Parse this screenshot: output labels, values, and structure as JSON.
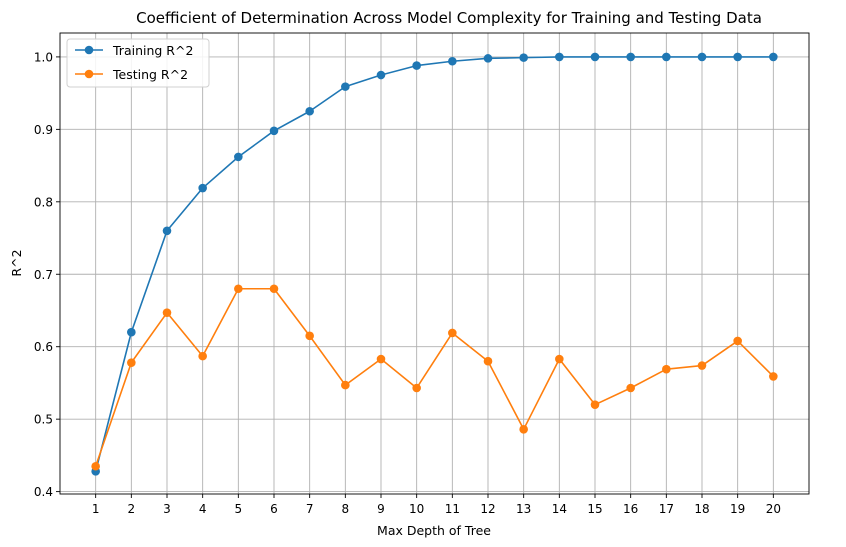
{
  "chart_data": {
    "type": "line",
    "title": "Coefficient of Determination Across Model Complexity for Training and Testing Data",
    "xlabel": "Max Depth of Tree",
    "ylabel": "R^2",
    "x": [
      1,
      2,
      3,
      4,
      5,
      6,
      7,
      8,
      9,
      10,
      11,
      12,
      13,
      14,
      15,
      16,
      17,
      18,
      19,
      20
    ],
    "ylim": [
      0.4,
      1.0
    ],
    "yticks": [
      0.4,
      0.5,
      0.6,
      0.7,
      0.8,
      0.9,
      1.0
    ],
    "ytick_labels": [
      "0.4",
      "0.5",
      "0.6",
      "0.7",
      "0.8",
      "0.9",
      "1.0"
    ],
    "grid": true,
    "legend_position": "top-left",
    "series": [
      {
        "name": "Training R^2",
        "color": "#1f77b4",
        "values": [
          0.428,
          0.62,
          0.76,
          0.819,
          0.862,
          0.898,
          0.925,
          0.959,
          0.975,
          0.988,
          0.994,
          0.998,
          0.999,
          1.0,
          1.0,
          1.0,
          1.0,
          1.0,
          1.0,
          1.0
        ]
      },
      {
        "name": "Testing R^2",
        "color": "#ff7f0e",
        "values": [
          0.435,
          0.578,
          0.647,
          0.587,
          0.68,
          0.68,
          0.615,
          0.547,
          0.583,
          0.543,
          0.619,
          0.58,
          0.486,
          0.583,
          0.52,
          0.543,
          0.569,
          0.574,
          0.608,
          0.559
        ]
      }
    ]
  }
}
